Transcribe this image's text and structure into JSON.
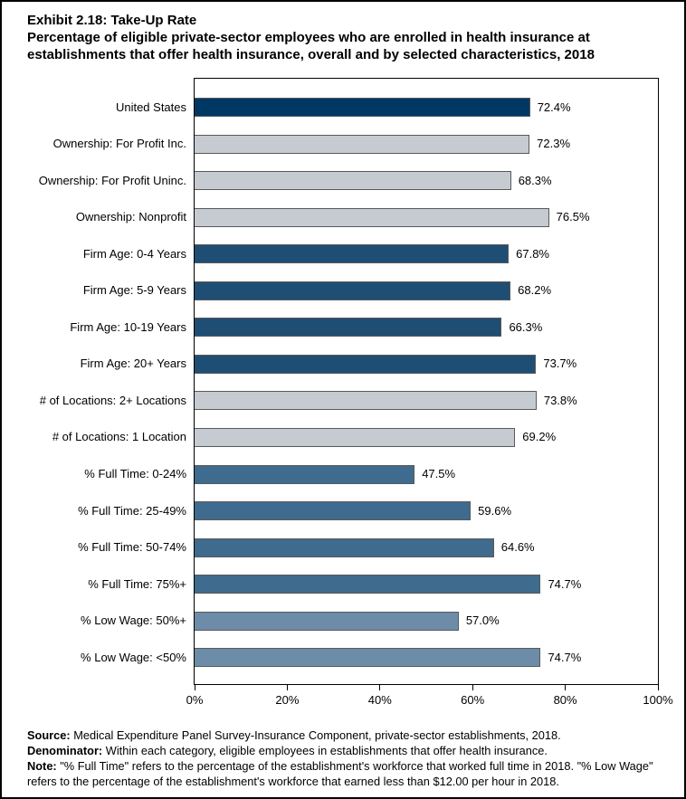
{
  "header": {
    "exhibit_title": "Exhibit 2.18: Take-Up Rate",
    "subtitle": "Percentage of eligible private-sector employees who are enrolled in health insurance at establishments that offer health insurance, overall and by selected characteristics, 2018"
  },
  "chart_data": {
    "type": "bar",
    "orientation": "horizontal",
    "title": "Exhibit 2.18: Take-Up Rate",
    "xlabel": "",
    "ylabel": "",
    "xlim": [
      0,
      100
    ],
    "x_tick_values": [
      0,
      20,
      40,
      60,
      80,
      100
    ],
    "x_tick_labels": [
      "0%",
      "20%",
      "40%",
      "60%",
      "80%",
      "100%"
    ],
    "grid": "off",
    "legend": "none",
    "categories": [
      "United States",
      "Ownership: For Profit Inc.",
      "Ownership: For Profit Uninc.",
      "Ownership: Nonprofit",
      "Firm Age: 0-4 Years",
      "Firm Age: 5-9 Years",
      "Firm Age: 10-19 Years",
      "Firm Age: 20+ Years",
      "# of Locations: 2+ Locations",
      "# of Locations: 1 Location",
      "% Full Time: 0-24%",
      "% Full Time: 25-49%",
      "% Full Time: 50-74%",
      "% Full Time: 75%+",
      "% Low Wage: 50%+",
      "% Low Wage: <50%"
    ],
    "values": [
      72.4,
      72.3,
      68.3,
      76.5,
      67.8,
      68.2,
      66.3,
      73.7,
      73.8,
      69.2,
      47.5,
      59.6,
      64.6,
      74.7,
      57.0,
      74.7
    ],
    "value_labels": [
      "72.4%",
      "72.3%",
      "68.3%",
      "76.5%",
      "67.8%",
      "68.2%",
      "66.3%",
      "73.7%",
      "73.8%",
      "69.2%",
      "47.5%",
      "59.6%",
      "64.6%",
      "74.7%",
      "57.0%",
      "74.7%"
    ],
    "bar_colors": [
      "#003865",
      "#C6CBD2",
      "#C6CBD2",
      "#C6CBD2",
      "#1F4E74",
      "#1F4E74",
      "#1F4E74",
      "#1F4E74",
      "#C6CBD2",
      "#C6CBD2",
      "#3F6B8E",
      "#3F6B8E",
      "#3F6B8E",
      "#3F6B8E",
      "#6D8CA8",
      "#6D8CA8"
    ],
    "bar_border_color": "#595959",
    "color_groups": {
      "united_states": "#003865",
      "ownership_and_locations": "#C6CBD2",
      "firm_age": "#1F4E74",
      "percent_full_time": "#3F6B8E",
      "percent_low_wage": "#6D8CA8"
    }
  },
  "footer": {
    "source_label": "Source:",
    "source_text": "Medical Expenditure Panel Survey-Insurance Component, private-sector establishments, 2018.",
    "denominator_label": "Denominator:",
    "denominator_text": "Within each category, eligible employees in establishments that offer health insurance.",
    "note_label": "Note:",
    "note_text": "\"% Full Time\" refers to the percentage of the establishment's workforce that worked full time in 2018. \"% Low Wage\" refers to the percentage of the establishment's workforce that earned less than $12.00 per hour in 2018."
  }
}
